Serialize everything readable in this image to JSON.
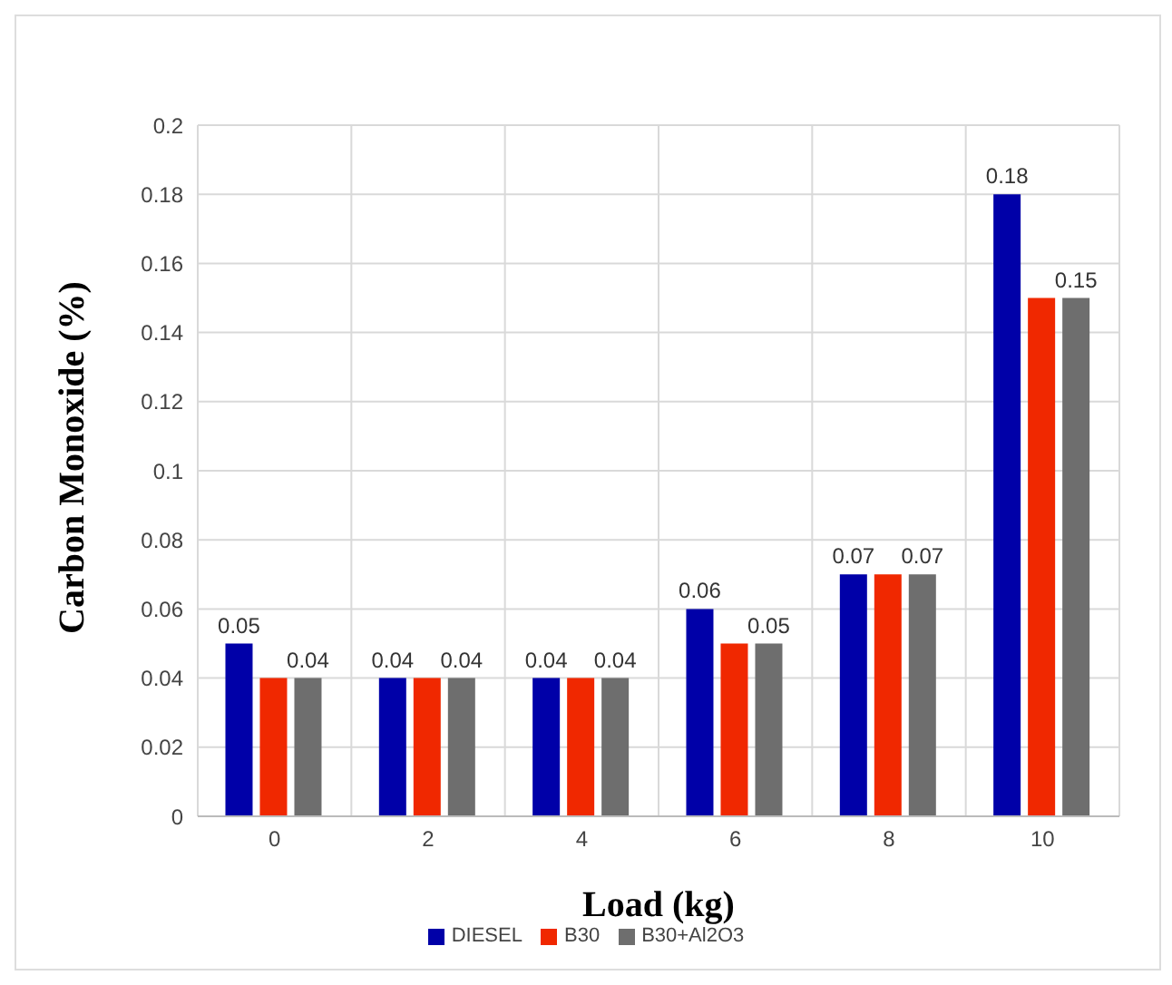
{
  "chart_data": {
    "type": "bar",
    "xlabel": "Load (kg)",
    "ylabel": "Carbon Monoxide (%)",
    "categories": [
      "0",
      "2",
      "4",
      "6",
      "8",
      "10"
    ],
    "series": [
      {
        "name": "DIESEL",
        "color": "#0000a8",
        "values": [
          0.05,
          0.04,
          0.04,
          0.06,
          0.07,
          0.18
        ],
        "value_labels": [
          "0.05",
          "0.04",
          "0.04",
          "0.06",
          "0.07",
          "0.18"
        ]
      },
      {
        "name": "B30",
        "color": "#f02800",
        "values": [
          0.04,
          0.04,
          0.04,
          0.05,
          0.07,
          0.15
        ]
      },
      {
        "name": "B30+Al2O3",
        "color": "#6e6e6e",
        "values": [
          0.04,
          0.04,
          0.04,
          0.05,
          0.07,
          0.15
        ],
        "value_labels": [
          "0.04",
          "0.04",
          "0.04",
          "0.05",
          "0.07",
          "0.15"
        ]
      }
    ],
    "ylim": [
      0,
      0.2
    ],
    "yticks": [
      0,
      0.02,
      0.04,
      0.06,
      0.08,
      0.1,
      0.12,
      0.14,
      0.16,
      0.18,
      0.2
    ],
    "grid": true,
    "legend": "bottom"
  }
}
